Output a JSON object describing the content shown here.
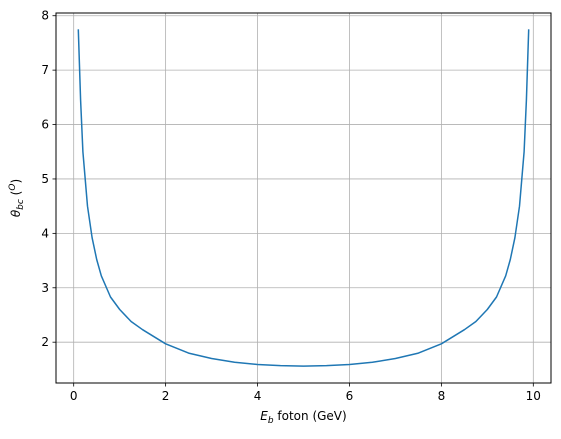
{
  "chart_data": {
    "type": "line",
    "title": "",
    "xlabel": {
      "main": "E",
      "sub": "b",
      "rest": " foton (GeV)"
    },
    "ylabel": {
      "main": "θ",
      "sub": "bc",
      "rest_open": " (",
      "sup": "O",
      "rest_close": ")"
    },
    "xlim": [
      -0.385,
      10.385
    ],
    "ylim": [
      1.25,
      8.05
    ],
    "xticks": [
      0,
      2,
      4,
      6,
      8,
      10
    ],
    "yticks": [
      2,
      3,
      4,
      5,
      6,
      7,
      8
    ],
    "grid": true,
    "line_color": "#1f77b4",
    "series": [
      {
        "x": [
          0.1,
          0.15,
          0.2,
          0.3,
          0.4,
          0.5,
          0.6,
          0.8,
          1.0,
          1.25,
          1.5,
          2.0,
          2.5,
          3.0,
          3.5,
          4.0,
          4.5,
          5.0,
          5.5,
          6.0,
          6.5,
          7.0,
          7.5,
          8.0,
          8.5,
          8.75,
          9.0,
          9.2,
          9.4,
          9.5,
          9.6,
          9.7,
          9.8,
          9.85,
          9.9
        ],
        "y": [
          7.75,
          6.45,
          5.5,
          4.5,
          3.92,
          3.52,
          3.22,
          2.83,
          2.6,
          2.38,
          2.23,
          1.97,
          1.8,
          1.7,
          1.63,
          1.59,
          1.57,
          1.56,
          1.57,
          1.59,
          1.63,
          1.7,
          1.8,
          1.97,
          2.23,
          2.38,
          2.6,
          2.83,
          3.22,
          3.52,
          3.92,
          4.5,
          5.5,
          6.45,
          7.75
        ]
      }
    ]
  }
}
